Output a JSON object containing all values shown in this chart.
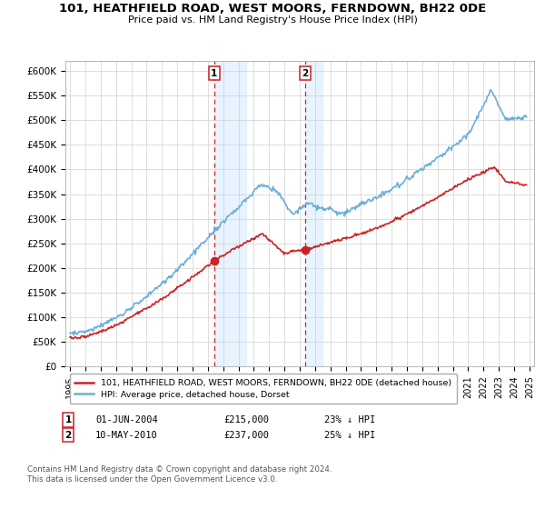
{
  "title": "101, HEATHFIELD ROAD, WEST MOORS, FERNDOWN, BH22 0DE",
  "subtitle": "Price paid vs. HM Land Registry's House Price Index (HPI)",
  "ylabel_ticks": [
    "£0",
    "£50K",
    "£100K",
    "£150K",
    "£200K",
    "£250K",
    "£300K",
    "£350K",
    "£400K",
    "£450K",
    "£500K",
    "£550K",
    "£600K"
  ],
  "ytick_values": [
    0,
    50000,
    100000,
    150000,
    200000,
    250000,
    300000,
    350000,
    400000,
    450000,
    500000,
    550000,
    600000
  ],
  "ylim": [
    0,
    620000
  ],
  "xlim_start": 1994.7,
  "xlim_end": 2025.3,
  "hpi_color": "#6baed6",
  "price_color": "#cc2222",
  "sale1_x": 2004.42,
  "sale1_y": 215000,
  "sale2_x": 2010.36,
  "sale2_y": 237000,
  "sale1_label": "01-JUN-2004",
  "sale1_price": "£215,000",
  "sale1_hpi": "23% ↓ HPI",
  "sale2_label": "10-MAY-2010",
  "sale2_price": "£237,000",
  "sale2_hpi": "25% ↓ HPI",
  "legend_line1": "101, HEATHFIELD ROAD, WEST MOORS, FERNDOWN, BH22 0DE (detached house)",
  "legend_line2": "HPI: Average price, detached house, Dorset",
  "footnote": "Contains HM Land Registry data © Crown copyright and database right 2024.\nThis data is licensed under the Open Government Licence v3.0.",
  "shade_color": "#ddeeff",
  "shade1_start": 2004.42,
  "shade1_end": 2006.5,
  "shade2_start": 2010.36,
  "shade2_end": 2011.5
}
